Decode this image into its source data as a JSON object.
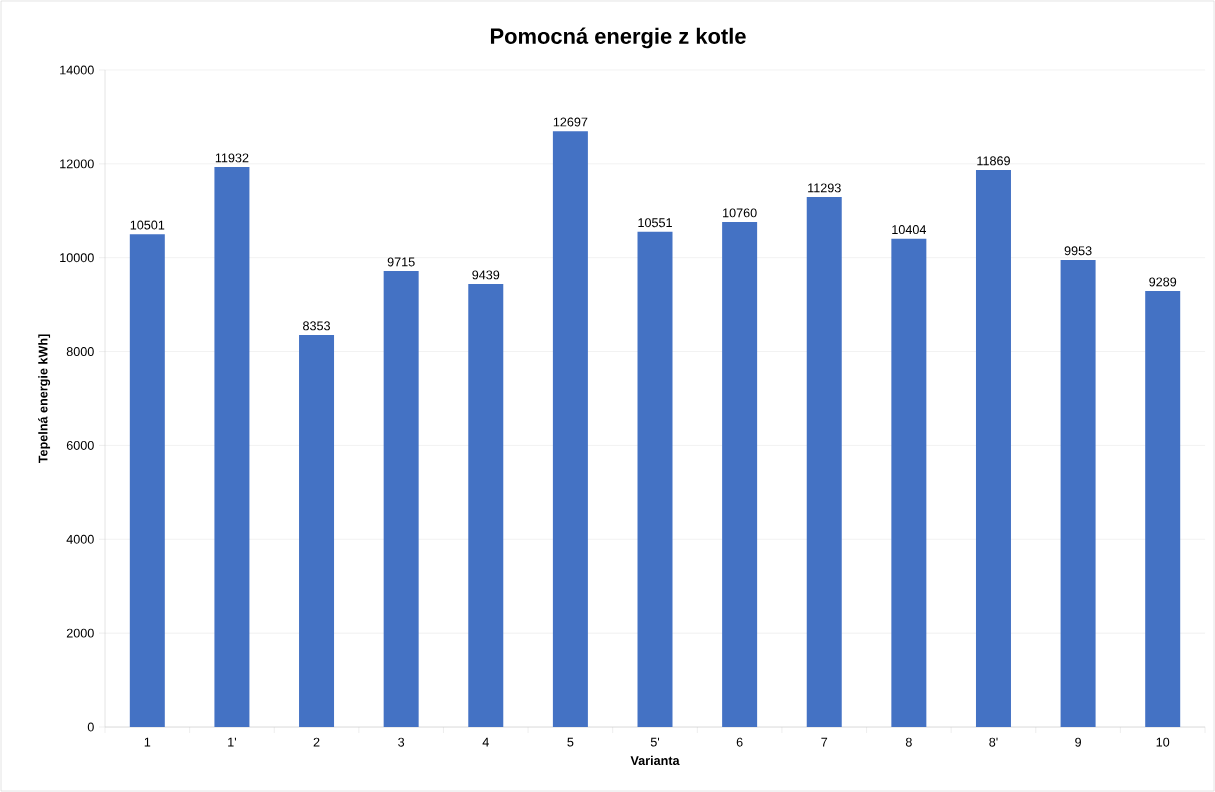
{
  "chart_data": {
    "type": "bar",
    "title": "Pomocná energie z kotle",
    "xlabel": "Varianta",
    "ylabel": "Tepelná energie kWh]",
    "categories": [
      "1",
      "1'",
      "2",
      "3",
      "4",
      "5",
      "5'",
      "6",
      "7",
      "8",
      "8'",
      "9",
      "10"
    ],
    "values": [
      10501,
      11932,
      8353,
      9715,
      9439,
      12697,
      10551,
      10760,
      11293,
      10404,
      11869,
      9953,
      9289
    ],
    "color": "#4472c4",
    "ylim": [
      0,
      14000
    ],
    "yticks": [
      0,
      2000,
      4000,
      6000,
      8000,
      10000,
      12000,
      14000
    ],
    "grid": "y",
    "data_labels": true
  }
}
